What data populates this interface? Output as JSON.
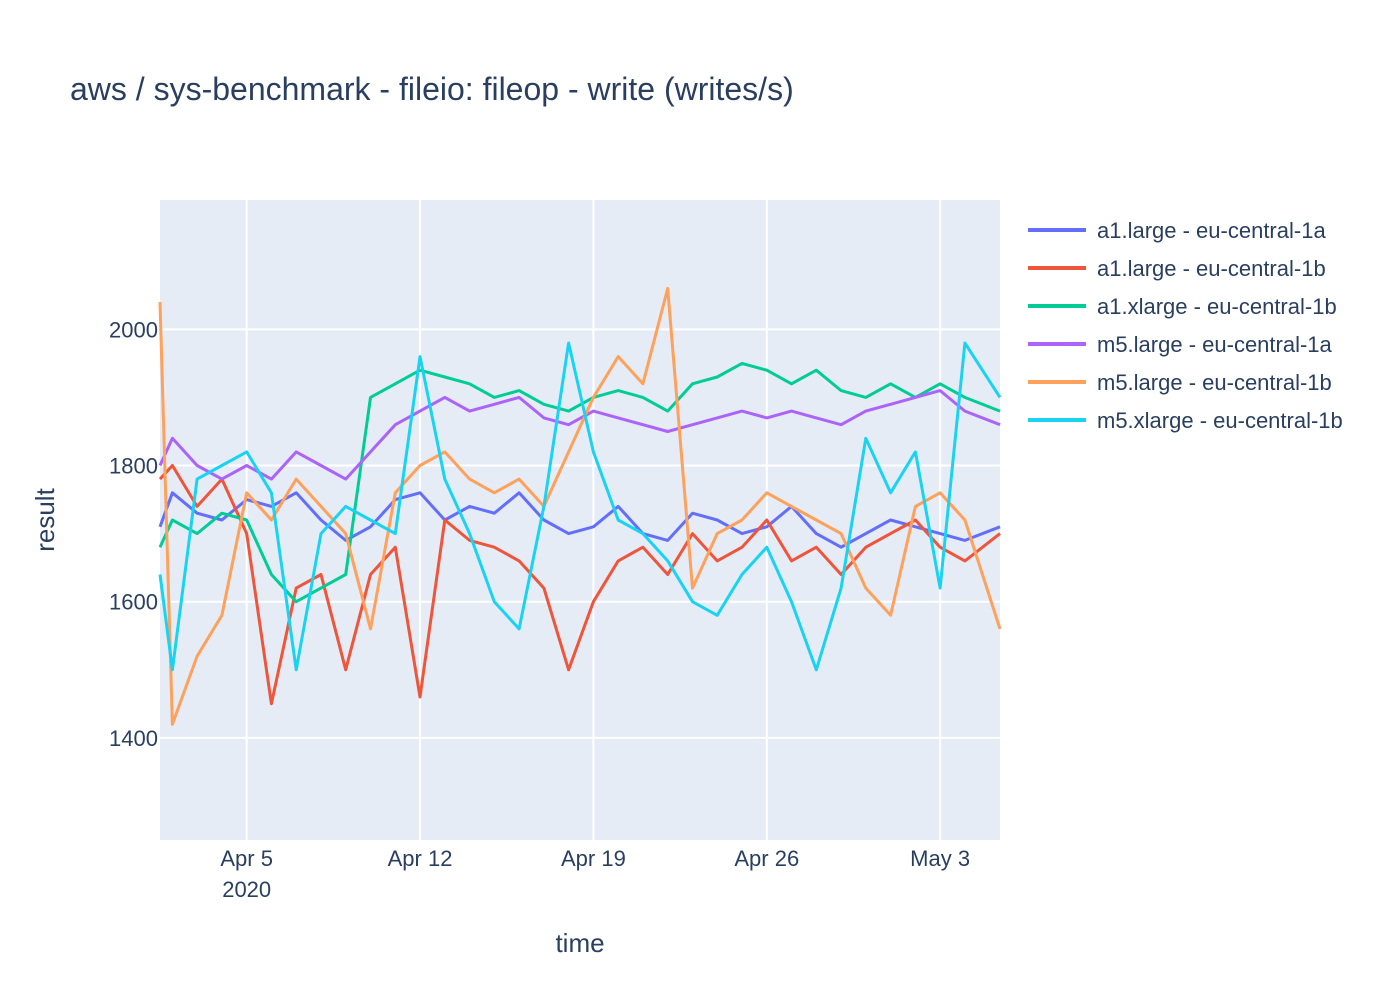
{
  "chart_data": {
    "type": "line",
    "title": "aws / sys-benchmark - fileio: fileop - write (writes/s)",
    "xlabel": "time",
    "ylabel": "result",
    "x_range": [
      "2020-04-01 12:00",
      "2020-05-05 10:00"
    ],
    "y_range": [
      1250,
      2190
    ],
    "x_ticks": [
      {
        "date": "2020-04-05",
        "label": "Apr 5",
        "sublabel": "2020"
      },
      {
        "date": "2020-04-12",
        "label": "Apr 12"
      },
      {
        "date": "2020-04-19",
        "label": "Apr 19"
      },
      {
        "date": "2020-04-26",
        "label": "Apr 26"
      },
      {
        "date": "2020-05-03",
        "label": "May 3"
      }
    ],
    "y_ticks": [
      1400,
      1600,
      1800,
      2000
    ],
    "grid": true,
    "legend_position": "top-right",
    "plot_background": "#e5ecf6",
    "series": [
      {
        "name": "a1.large - eu-central-1a",
        "color": "#636efa",
        "points": [
          [
            "2020-04-01 12:00",
            1710
          ],
          [
            "2020-04-02",
            1760
          ],
          [
            "2020-04-03",
            1730
          ],
          [
            "2020-04-04",
            1720
          ],
          [
            "2020-04-05",
            1750
          ],
          [
            "2020-04-06",
            1740
          ],
          [
            "2020-04-07",
            1760
          ],
          [
            "2020-04-08",
            1720
          ],
          [
            "2020-04-09",
            1690
          ],
          [
            "2020-04-10",
            1710
          ],
          [
            "2020-04-11",
            1750
          ],
          [
            "2020-04-12",
            1760
          ],
          [
            "2020-04-13",
            1720
          ],
          [
            "2020-04-14",
            1740
          ],
          [
            "2020-04-15",
            1730
          ],
          [
            "2020-04-16",
            1760
          ],
          [
            "2020-04-17",
            1720
          ],
          [
            "2020-04-18",
            1700
          ],
          [
            "2020-04-19",
            1710
          ],
          [
            "2020-04-20",
            1740
          ],
          [
            "2020-04-21",
            1700
          ],
          [
            "2020-04-22",
            1690
          ],
          [
            "2020-04-23",
            1730
          ],
          [
            "2020-04-24",
            1720
          ],
          [
            "2020-04-25",
            1700
          ],
          [
            "2020-04-26",
            1710
          ],
          [
            "2020-04-27",
            1740
          ],
          [
            "2020-04-28",
            1700
          ],
          [
            "2020-04-29",
            1680
          ],
          [
            "2020-04-30",
            1700
          ],
          [
            "2020-05-01",
            1720
          ],
          [
            "2020-05-02",
            1710
          ],
          [
            "2020-05-03",
            1700
          ],
          [
            "2020-05-04",
            1690
          ],
          [
            "2020-05-05 10:00",
            1710
          ]
        ]
      },
      {
        "name": "a1.large - eu-central-1b",
        "color": "#ef553b",
        "points": [
          [
            "2020-04-01 12:00",
            1780
          ],
          [
            "2020-04-02",
            1800
          ],
          [
            "2020-04-03",
            1740
          ],
          [
            "2020-04-04",
            1780
          ],
          [
            "2020-04-05",
            1700
          ],
          [
            "2020-04-06",
            1450
          ],
          [
            "2020-04-07",
            1620
          ],
          [
            "2020-04-08",
            1640
          ],
          [
            "2020-04-09",
            1500
          ],
          [
            "2020-04-10",
            1640
          ],
          [
            "2020-04-11",
            1680
          ],
          [
            "2020-04-12",
            1460
          ],
          [
            "2020-04-13",
            1720
          ],
          [
            "2020-04-14",
            1690
          ],
          [
            "2020-04-15",
            1680
          ],
          [
            "2020-04-16",
            1660
          ],
          [
            "2020-04-17",
            1620
          ],
          [
            "2020-04-18",
            1500
          ],
          [
            "2020-04-19",
            1600
          ],
          [
            "2020-04-20",
            1660
          ],
          [
            "2020-04-21",
            1680
          ],
          [
            "2020-04-22",
            1640
          ],
          [
            "2020-04-23",
            1700
          ],
          [
            "2020-04-24",
            1660
          ],
          [
            "2020-04-25",
            1680
          ],
          [
            "2020-04-26",
            1720
          ],
          [
            "2020-04-27",
            1660
          ],
          [
            "2020-04-28",
            1680
          ],
          [
            "2020-04-29",
            1640
          ],
          [
            "2020-04-30",
            1680
          ],
          [
            "2020-05-01",
            1700
          ],
          [
            "2020-05-02",
            1720
          ],
          [
            "2020-05-03",
            1680
          ],
          [
            "2020-05-04",
            1660
          ],
          [
            "2020-05-05 10:00",
            1700
          ]
        ]
      },
      {
        "name": "a1.xlarge - eu-central-1b",
        "color": "#00cc96",
        "points": [
          [
            "2020-04-01 12:00",
            1680
          ],
          [
            "2020-04-02",
            1720
          ],
          [
            "2020-04-03",
            1700
          ],
          [
            "2020-04-04",
            1730
          ],
          [
            "2020-04-05",
            1720
          ],
          [
            "2020-04-06",
            1640
          ],
          [
            "2020-04-07",
            1600
          ],
          [
            "2020-04-08",
            1620
          ],
          [
            "2020-04-09",
            1640
          ],
          [
            "2020-04-10",
            1900
          ],
          [
            "2020-04-11",
            1920
          ],
          [
            "2020-04-12",
            1940
          ],
          [
            "2020-04-13",
            1930
          ],
          [
            "2020-04-14",
            1920
          ],
          [
            "2020-04-15",
            1900
          ],
          [
            "2020-04-16",
            1910
          ],
          [
            "2020-04-17",
            1890
          ],
          [
            "2020-04-18",
            1880
          ],
          [
            "2020-04-19",
            1900
          ],
          [
            "2020-04-20",
            1910
          ],
          [
            "2020-04-21",
            1900
          ],
          [
            "2020-04-22",
            1880
          ],
          [
            "2020-04-23",
            1920
          ],
          [
            "2020-04-24",
            1930
          ],
          [
            "2020-04-25",
            1950
          ],
          [
            "2020-04-26",
            1940
          ],
          [
            "2020-04-27",
            1920
          ],
          [
            "2020-04-28",
            1940
          ],
          [
            "2020-04-29",
            1910
          ],
          [
            "2020-04-30",
            1900
          ],
          [
            "2020-05-01",
            1920
          ],
          [
            "2020-05-02",
            1900
          ],
          [
            "2020-05-03",
            1920
          ],
          [
            "2020-05-04",
            1900
          ],
          [
            "2020-05-05 10:00",
            1880
          ]
        ]
      },
      {
        "name": "m5.large - eu-central-1a",
        "color": "#ab63fa",
        "points": [
          [
            "2020-04-01 12:00",
            1800
          ],
          [
            "2020-04-02",
            1840
          ],
          [
            "2020-04-03",
            1800
          ],
          [
            "2020-04-04",
            1780
          ],
          [
            "2020-04-05",
            1800
          ],
          [
            "2020-04-06",
            1780
          ],
          [
            "2020-04-07",
            1820
          ],
          [
            "2020-04-08",
            1800
          ],
          [
            "2020-04-09",
            1780
          ],
          [
            "2020-04-10",
            1820
          ],
          [
            "2020-04-11",
            1860
          ],
          [
            "2020-04-12",
            1880
          ],
          [
            "2020-04-13",
            1900
          ],
          [
            "2020-04-14",
            1880
          ],
          [
            "2020-04-15",
            1890
          ],
          [
            "2020-04-16",
            1900
          ],
          [
            "2020-04-17",
            1870
          ],
          [
            "2020-04-18",
            1860
          ],
          [
            "2020-04-19",
            1880
          ],
          [
            "2020-04-20",
            1870
          ],
          [
            "2020-04-21",
            1860
          ],
          [
            "2020-04-22",
            1850
          ],
          [
            "2020-04-23",
            1860
          ],
          [
            "2020-04-24",
            1870
          ],
          [
            "2020-04-25",
            1880
          ],
          [
            "2020-04-26",
            1870
          ],
          [
            "2020-04-27",
            1880
          ],
          [
            "2020-04-28",
            1870
          ],
          [
            "2020-04-29",
            1860
          ],
          [
            "2020-04-30",
            1880
          ],
          [
            "2020-05-01",
            1890
          ],
          [
            "2020-05-02",
            1900
          ],
          [
            "2020-05-03",
            1910
          ],
          [
            "2020-05-04",
            1880
          ],
          [
            "2020-05-05 10:00",
            1860
          ]
        ]
      },
      {
        "name": "m5.large - eu-central-1b",
        "color": "#ffa15a",
        "points": [
          [
            "2020-04-01 12:00",
            2040
          ],
          [
            "2020-04-02",
            1420
          ],
          [
            "2020-04-03",
            1520
          ],
          [
            "2020-04-04",
            1580
          ],
          [
            "2020-04-05",
            1760
          ],
          [
            "2020-04-06",
            1720
          ],
          [
            "2020-04-07",
            1780
          ],
          [
            "2020-04-08",
            1740
          ],
          [
            "2020-04-09",
            1700
          ],
          [
            "2020-04-10",
            1560
          ],
          [
            "2020-04-11",
            1760
          ],
          [
            "2020-04-12",
            1800
          ],
          [
            "2020-04-13",
            1820
          ],
          [
            "2020-04-14",
            1780
          ],
          [
            "2020-04-15",
            1760
          ],
          [
            "2020-04-16",
            1780
          ],
          [
            "2020-04-17",
            1740
          ],
          [
            "2020-04-18",
            1820
          ],
          [
            "2020-04-19",
            1900
          ],
          [
            "2020-04-20",
            1960
          ],
          [
            "2020-04-21",
            1920
          ],
          [
            "2020-04-22",
            2060
          ],
          [
            "2020-04-23",
            1620
          ],
          [
            "2020-04-24",
            1700
          ],
          [
            "2020-04-25",
            1720
          ],
          [
            "2020-04-26",
            1760
          ],
          [
            "2020-04-27",
            1740
          ],
          [
            "2020-04-28",
            1720
          ],
          [
            "2020-04-29",
            1700
          ],
          [
            "2020-04-30",
            1620
          ],
          [
            "2020-05-01",
            1580
          ],
          [
            "2020-05-02",
            1740
          ],
          [
            "2020-05-03",
            1760
          ],
          [
            "2020-05-04",
            1720
          ],
          [
            "2020-05-05 10:00",
            1560
          ]
        ]
      },
      {
        "name": "m5.xlarge - eu-central-1b",
        "color": "#19d3f3",
        "points": [
          [
            "2020-04-01 12:00",
            1640
          ],
          [
            "2020-04-02",
            1500
          ],
          [
            "2020-04-03",
            1780
          ],
          [
            "2020-04-04",
            1800
          ],
          [
            "2020-04-05",
            1820
          ],
          [
            "2020-04-06",
            1760
          ],
          [
            "2020-04-07",
            1500
          ],
          [
            "2020-04-08",
            1700
          ],
          [
            "2020-04-09",
            1740
          ],
          [
            "2020-04-10",
            1720
          ],
          [
            "2020-04-11",
            1700
          ],
          [
            "2020-04-12",
            1960
          ],
          [
            "2020-04-13",
            1780
          ],
          [
            "2020-04-14",
            1700
          ],
          [
            "2020-04-15",
            1600
          ],
          [
            "2020-04-16",
            1560
          ],
          [
            "2020-04-17",
            1740
          ],
          [
            "2020-04-18",
            1980
          ],
          [
            "2020-04-19",
            1820
          ],
          [
            "2020-04-20",
            1720
          ],
          [
            "2020-04-21",
            1700
          ],
          [
            "2020-04-22",
            1660
          ],
          [
            "2020-04-23",
            1600
          ],
          [
            "2020-04-24",
            1580
          ],
          [
            "2020-04-25",
            1640
          ],
          [
            "2020-04-26",
            1680
          ],
          [
            "2020-04-27",
            1600
          ],
          [
            "2020-04-28",
            1500
          ],
          [
            "2020-04-29",
            1620
          ],
          [
            "2020-04-30",
            1840
          ],
          [
            "2020-05-01",
            1760
          ],
          [
            "2020-05-02",
            1820
          ],
          [
            "2020-05-03",
            1620
          ],
          [
            "2020-05-04",
            1980
          ],
          [
            "2020-05-05 10:00",
            1900
          ]
        ]
      }
    ]
  }
}
